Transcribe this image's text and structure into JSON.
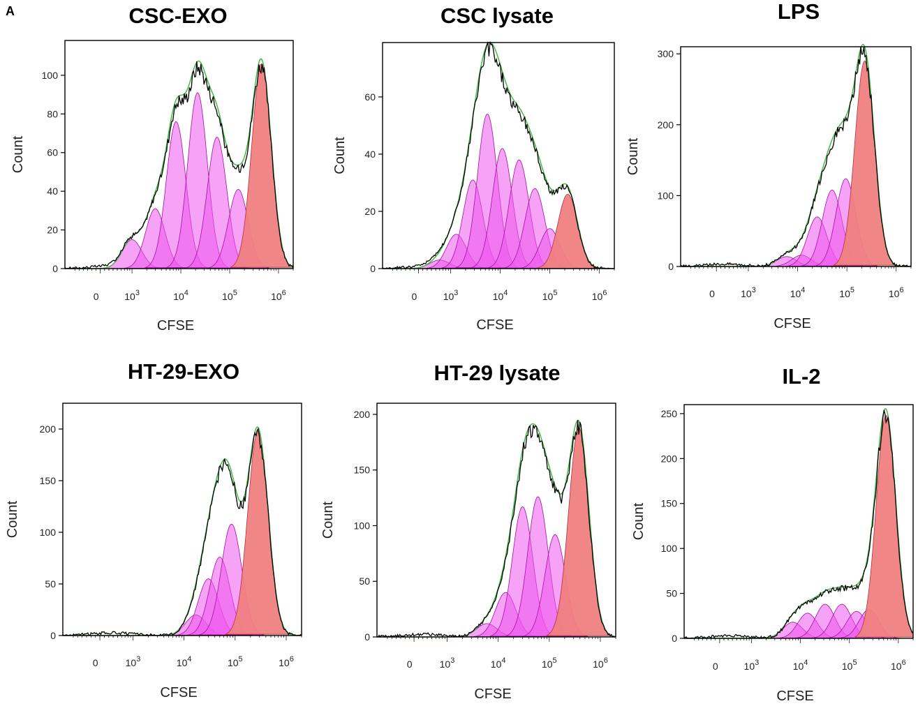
{
  "panel_letter": "A",
  "chart_data": [
    {
      "type": "area",
      "title": "CSC-EXO",
      "xlabel": "CFSE",
      "ylabel": "Count",
      "x_scale": "biexponential",
      "xlim": [
        -800,
        2000000
      ],
      "ylim": [
        0,
        118
      ],
      "yticks": [
        0,
        20,
        40,
        60,
        80,
        100
      ],
      "xticks": [
        "0",
        "10^3",
        "10^4",
        "10^5",
        "10^6"
      ],
      "peaks": [
        {
          "generation": 6,
          "x": 1000,
          "height": 15
        },
        {
          "generation": 5,
          "x": 3000,
          "height": 31
        },
        {
          "generation": 4,
          "x": 8000,
          "height": 76
        },
        {
          "generation": 3,
          "x": 22000,
          "height": 91
        },
        {
          "generation": 2,
          "x": 55000,
          "height": 68
        },
        {
          "generation": 1,
          "x": 150000,
          "height": 41
        },
        {
          "generation": 0,
          "x": 450000,
          "height": 106
        }
      ]
    },
    {
      "type": "area",
      "title": "CSC lysate",
      "xlabel": "CFSE",
      "ylabel": "Count",
      "x_scale": "biexponential",
      "xlim": [
        -800,
        2000000
      ],
      "ylim": [
        0,
        79
      ],
      "yticks": [
        0,
        20,
        40,
        60
      ],
      "xticks": [
        "0",
        "10^3",
        "10^4",
        "10^5",
        "10^6"
      ],
      "peaks": [
        {
          "generation": 8,
          "x": 600,
          "height": 3
        },
        {
          "generation": 7,
          "x": 1300,
          "height": 12
        },
        {
          "generation": 6,
          "x": 2800,
          "height": 31
        },
        {
          "generation": 5,
          "x": 5500,
          "height": 54
        },
        {
          "generation": 4,
          "x": 11000,
          "height": 42
        },
        {
          "generation": 3,
          "x": 24000,
          "height": 38
        },
        {
          "generation": 2,
          "x": 50000,
          "height": 28
        },
        {
          "generation": 1,
          "x": 100000,
          "height": 14
        },
        {
          "generation": 0,
          "x": 230000,
          "height": 26
        }
      ]
    },
    {
      "type": "area",
      "title": "LPS",
      "xlabel": "CFSE",
      "ylabel": "Count",
      "x_scale": "biexponential",
      "xlim": [
        -800,
        2000000
      ],
      "ylim": [
        0,
        310
      ],
      "yticks": [
        0,
        100,
        200,
        300
      ],
      "xticks": [
        "0",
        "10^3",
        "10^4",
        "10^5",
        "10^6"
      ],
      "peaks": [
        {
          "generation": 5,
          "x": 6000,
          "height": 14
        },
        {
          "generation": 4,
          "x": 12000,
          "height": 16
        },
        {
          "generation": 3,
          "x": 25000,
          "height": 70
        },
        {
          "generation": 2,
          "x": 50000,
          "height": 108
        },
        {
          "generation": 1,
          "x": 95000,
          "height": 124
        },
        {
          "generation": 0,
          "x": 230000,
          "height": 290
        }
      ]
    },
    {
      "type": "area",
      "title": "HT-29-EXO",
      "xlabel": "CFSE",
      "ylabel": "Count",
      "x_scale": "biexponential",
      "xlim": [
        -800,
        2000000
      ],
      "ylim": [
        0,
        225
      ],
      "yticks": [
        0,
        50,
        100,
        150,
        200
      ],
      "xticks": [
        "0",
        "10^3",
        "10^4",
        "10^5",
        "10^6"
      ],
      "peaks": [
        {
          "generation": 4,
          "x": 17000,
          "height": 20
        },
        {
          "generation": 3,
          "x": 30000,
          "height": 55
        },
        {
          "generation": 2,
          "x": 50000,
          "height": 76
        },
        {
          "generation": 1,
          "x": 85000,
          "height": 108
        },
        {
          "generation": 0,
          "x": 280000,
          "height": 198
        }
      ]
    },
    {
      "type": "area",
      "title": "HT-29 lysate",
      "xlabel": "CFSE",
      "ylabel": "Count",
      "x_scale": "biexponential",
      "xlim": [
        -800,
        2000000
      ],
      "ylim": [
        0,
        210
      ],
      "yticks": [
        0,
        50,
        100,
        150,
        200
      ],
      "xticks": [
        "0",
        "10^3",
        "10^4",
        "10^5",
        "10^6"
      ],
      "peaks": [
        {
          "generation": 5,
          "x": 6000,
          "height": 12
        },
        {
          "generation": 4,
          "x": 14000,
          "height": 40
        },
        {
          "generation": 3,
          "x": 30000,
          "height": 117
        },
        {
          "generation": 2,
          "x": 60000,
          "height": 126
        },
        {
          "generation": 1,
          "x": 130000,
          "height": 92
        },
        {
          "generation": 0,
          "x": 380000,
          "height": 188
        }
      ]
    },
    {
      "type": "area",
      "title": "IL-2",
      "xlabel": "CFSE",
      "ylabel": "Count",
      "x_scale": "biexponential",
      "xlim": [
        -800,
        2000000
      ],
      "ylim": [
        0,
        260
      ],
      "yticks": [
        0,
        50,
        100,
        150,
        200,
        250
      ],
      "xticks": [
        "0",
        "10^3",
        "10^4",
        "10^5",
        "10^6"
      ],
      "peaks": [
        {
          "generation": 6,
          "x": 7000,
          "height": 18
        },
        {
          "generation": 5,
          "x": 14000,
          "height": 28
        },
        {
          "generation": 4,
          "x": 32000,
          "height": 38
        },
        {
          "generation": 3,
          "x": 70000,
          "height": 38
        },
        {
          "generation": 2,
          "x": 140000,
          "height": 30
        },
        {
          "generation": 1,
          "x": 250000,
          "height": 32
        },
        {
          "generation": 0,
          "x": 560000,
          "height": 248
        }
      ]
    }
  ],
  "colors": {
    "division_fill": "#ee55ee",
    "division_stroke": "#a010a0",
    "parent_fill": "#f08080",
    "parent_stroke": "#b03040",
    "model_line": "#44bb44",
    "data_line": "#000000"
  }
}
